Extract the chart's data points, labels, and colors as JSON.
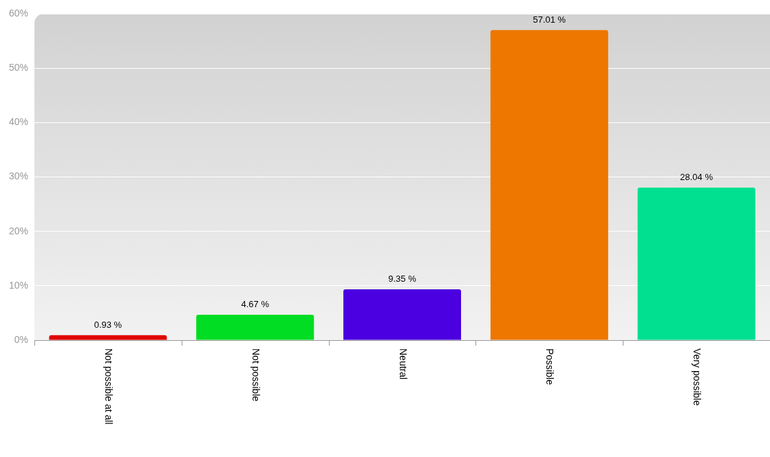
{
  "chart_data": {
    "type": "bar",
    "categories": [
      "Not possible at all",
      "Not possible",
      "Neutral",
      "Possible",
      "Very possible"
    ],
    "values": [
      0.93,
      4.67,
      9.35,
      57.01,
      28.04
    ],
    "colors": [
      "#e00000",
      "#00dd22",
      "#4a00e0",
      "#ee7700",
      "#00e090"
    ],
    "value_labels": [
      "0.93 %",
      "4.67 %",
      "9.35 %",
      "57.01 %",
      "28.04 %"
    ],
    "ylim": [
      0,
      60
    ],
    "yticks": [
      {
        "value": 0,
        "label": "0%"
      },
      {
        "value": 10,
        "label": "10%"
      },
      {
        "value": 20,
        "label": "20%"
      },
      {
        "value": 30,
        "label": "30%"
      },
      {
        "value": 40,
        "label": "40%"
      },
      {
        "value": 50,
        "label": "50%"
      },
      {
        "value": 60,
        "label": "60%"
      }
    ],
    "grid": "y"
  }
}
